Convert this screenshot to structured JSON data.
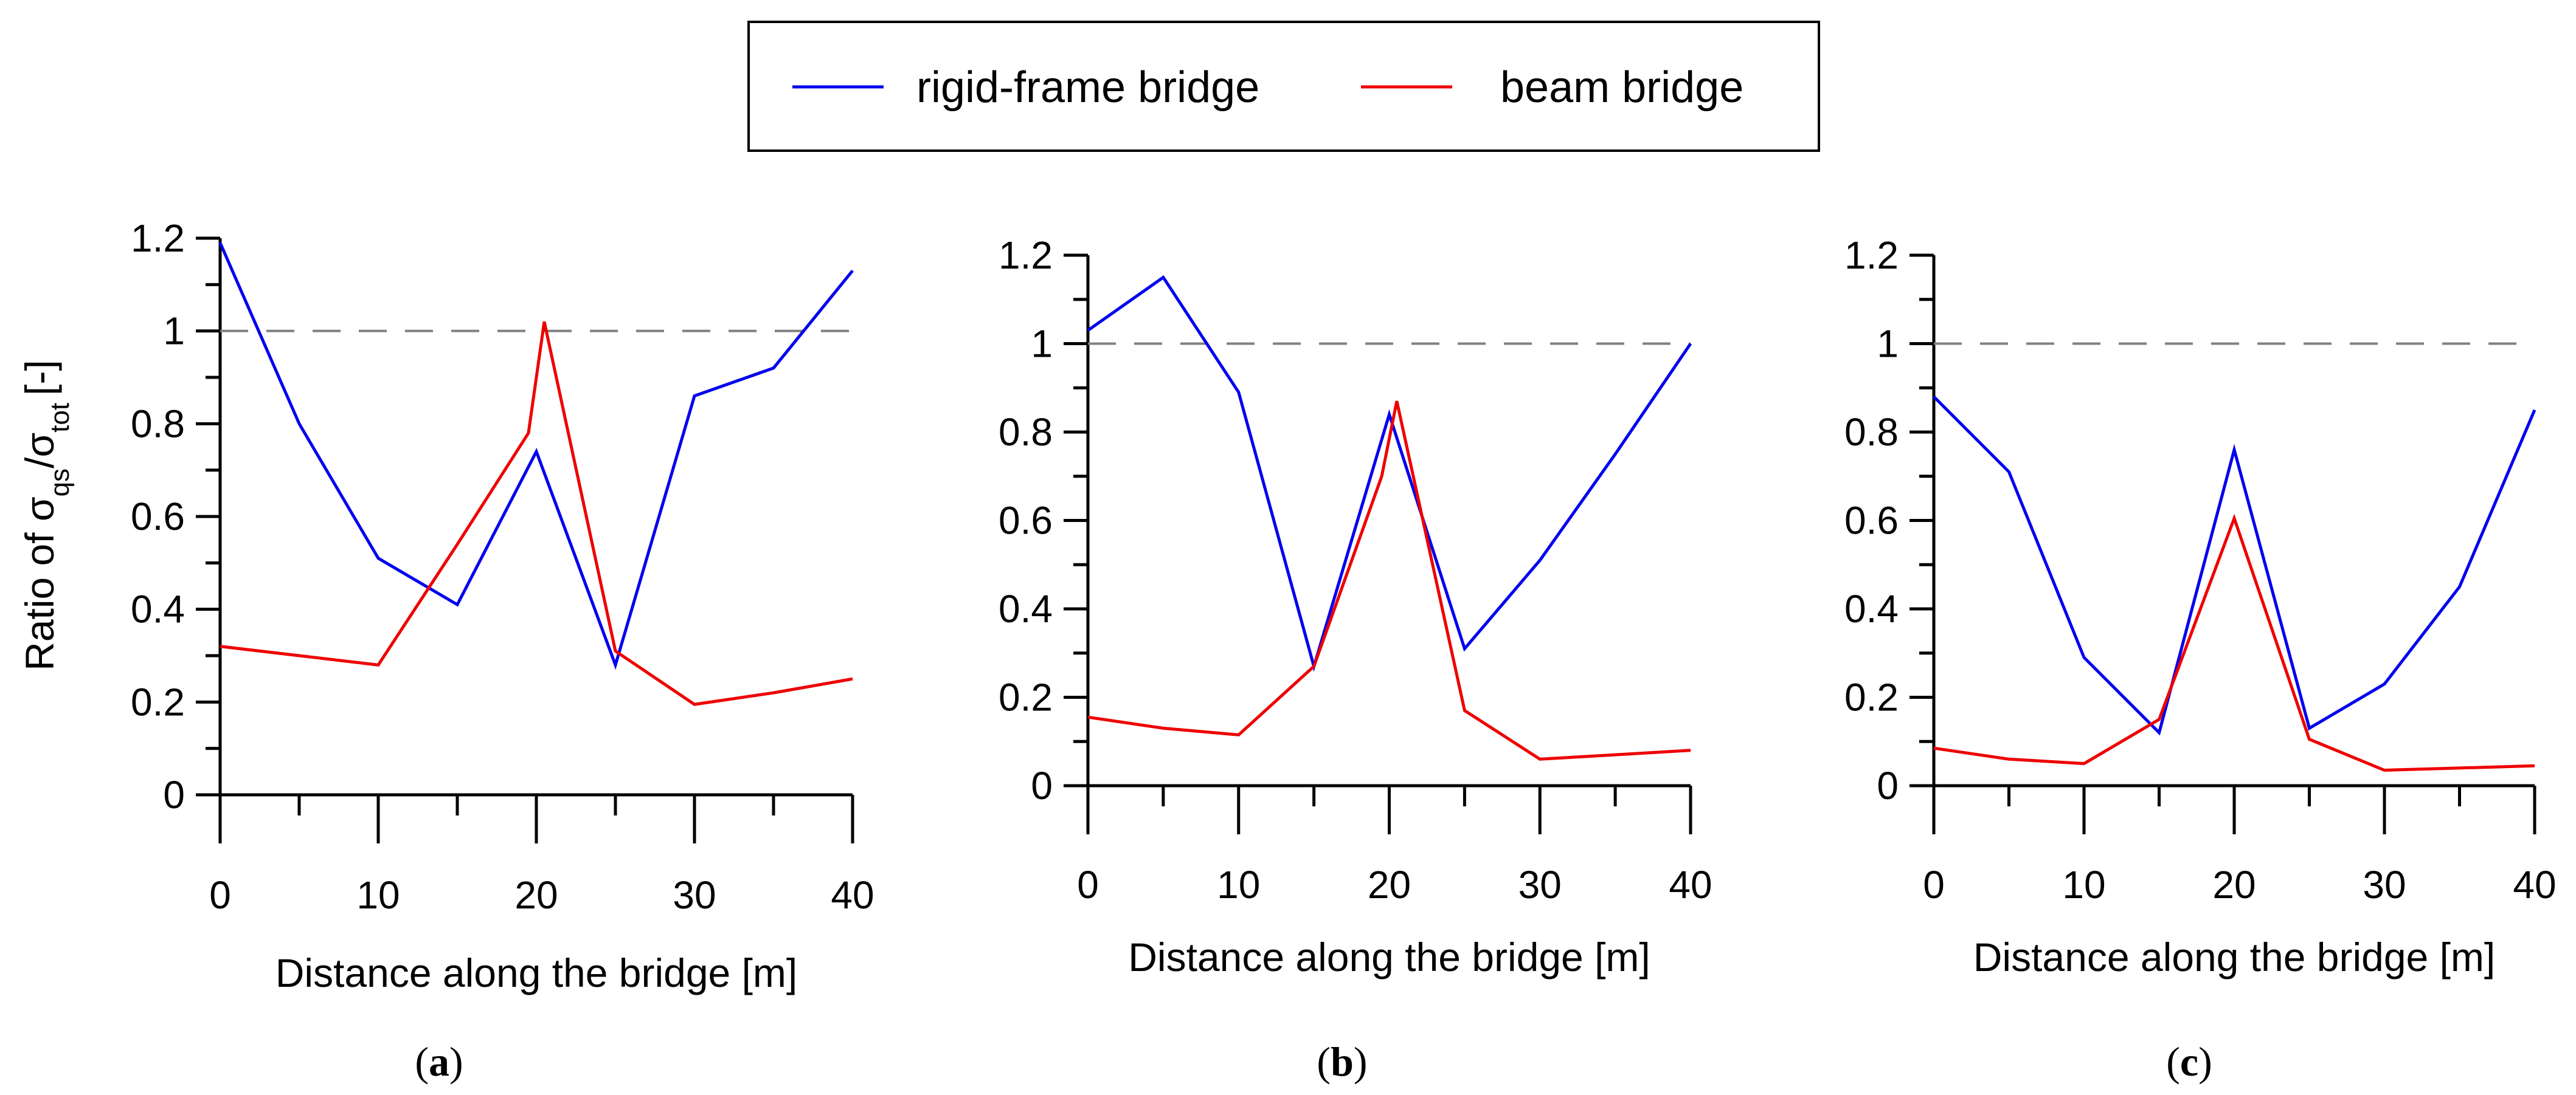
{
  "legend": {
    "items": [
      {
        "label": "rigid-frame bridge",
        "color": "#0000ee"
      },
      {
        "label": "beam bridge",
        "color": "#ee0000"
      }
    ]
  },
  "reference_line": {
    "value": 1,
    "color": "#808080",
    "style": "dashed"
  },
  "ylabel_parts": {
    "prefix": "Ratio of ",
    "sym1": "σ",
    "sub1": "qs",
    "slash": "/",
    "sym2": "σ",
    "sub2": "tot",
    "suffix": "[-]"
  },
  "chart_data": [
    {
      "type": "line",
      "panel": "a",
      "panel_label": {
        "open": "(",
        "letter": "a",
        "close": ")"
      },
      "xlabel": "Distance along the bridge [m]",
      "ylabel": "Ratio of σqs/σtot [-]",
      "xlim": [
        0,
        40
      ],
      "ylim": [
        0,
        1.2
      ],
      "xticks": [
        0,
        10,
        20,
        30,
        40
      ],
      "yticks": [
        0,
        0.2,
        0.4,
        0.6,
        0.8,
        1,
        1.2
      ],
      "xtick_labels": [
        "0",
        "10",
        "20",
        "30",
        "40"
      ],
      "ytick_labels": [
        "0",
        "0.2",
        "0.4",
        "0.6",
        "0.8",
        "1",
        "1.2"
      ],
      "series": [
        {
          "name": "rigid-frame bridge",
          "x": [
            0,
            5,
            10,
            15,
            20,
            25,
            30,
            35,
            40
          ],
          "y": [
            1.19,
            0.8,
            0.51,
            0.41,
            0.74,
            0.28,
            0.86,
            0.92,
            1.13
          ]
        },
        {
          "name": "beam bridge",
          "x": [
            0,
            5,
            10,
            15,
            19.5,
            20.5,
            25,
            30,
            35,
            40
          ],
          "y": [
            0.32,
            0.3,
            0.28,
            0.54,
            0.78,
            1.02,
            0.31,
            0.195,
            0.22,
            0.25
          ]
        }
      ]
    },
    {
      "type": "line",
      "panel": "b",
      "panel_label": {
        "open": "(",
        "letter": "b",
        "close": ")"
      },
      "xlabel": "Distance along the bridge [m]",
      "ylabel": "",
      "xlim": [
        0,
        40
      ],
      "ylim": [
        0,
        1.2
      ],
      "xticks": [
        0,
        10,
        20,
        30,
        40
      ],
      "yticks": [
        0,
        0.2,
        0.4,
        0.6,
        0.8,
        1,
        1.2
      ],
      "xtick_labels": [
        "0",
        "10",
        "20",
        "30",
        "40"
      ],
      "ytick_labels": [
        "0",
        "0.2",
        "0.4",
        "0.6",
        "0.8",
        "1",
        "1.2"
      ],
      "series": [
        {
          "name": "rigid-frame bridge",
          "x": [
            0,
            5,
            10,
            15,
            20,
            25,
            30,
            35,
            40
          ],
          "y": [
            1.03,
            1.15,
            0.89,
            0.27,
            0.84,
            0.31,
            0.51,
            0.75,
            1.0
          ]
        },
        {
          "name": "beam bridge",
          "x": [
            0,
            5,
            10,
            15,
            19.5,
            20.5,
            25,
            30,
            35,
            40
          ],
          "y": [
            0.155,
            0.13,
            0.115,
            0.27,
            0.7,
            0.87,
            0.17,
            0.06,
            0.07,
            0.08
          ]
        }
      ]
    },
    {
      "type": "line",
      "panel": "c",
      "panel_label": {
        "open": "(",
        "letter": "c",
        "close": ")"
      },
      "xlabel": "Distance along the bridge [m]",
      "ylabel": "",
      "xlim": [
        0,
        40
      ],
      "ylim": [
        0,
        1.2
      ],
      "xticks": [
        0,
        10,
        20,
        30,
        40
      ],
      "yticks": [
        0,
        0.2,
        0.4,
        0.6,
        0.8,
        1,
        1.2
      ],
      "xtick_labels": [
        "0",
        "10",
        "20",
        "30",
        "40"
      ],
      "ytick_labels": [
        "0",
        "0.2",
        "0.4",
        "0.6",
        "0.8",
        "1",
        "1.2"
      ],
      "series": [
        {
          "name": "rigid-frame bridge",
          "x": [
            0,
            5,
            10,
            15,
            20,
            25,
            30,
            35,
            40
          ],
          "y": [
            0.88,
            0.71,
            0.29,
            0.12,
            0.76,
            0.13,
            0.23,
            0.45,
            0.85
          ]
        },
        {
          "name": "beam bridge",
          "x": [
            0,
            5,
            10,
            15,
            20,
            25,
            30,
            35,
            40
          ],
          "y": [
            0.085,
            0.06,
            0.05,
            0.15,
            0.605,
            0.105,
            0.035,
            0.04,
            0.045
          ]
        }
      ]
    }
  ]
}
